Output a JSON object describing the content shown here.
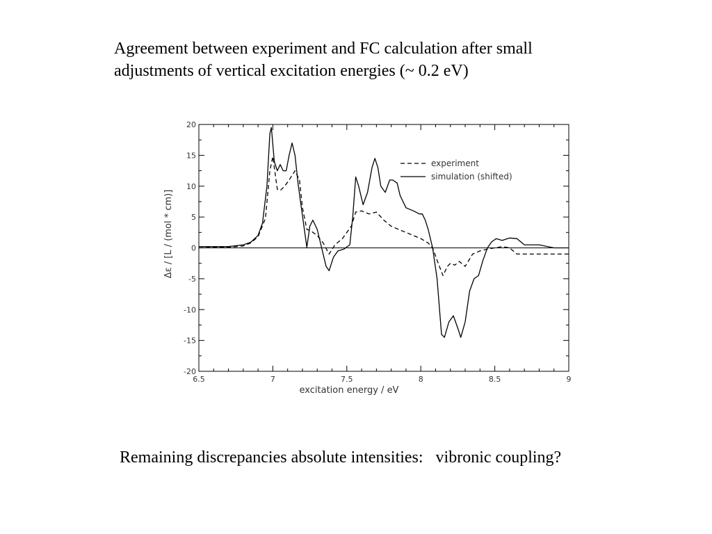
{
  "slide": {
    "title_lines": [
      "Agreement between experiment and FC calculation after small",
      "adjustments of vertical excitation energies (~ 0.2 eV)"
    ],
    "footer": "Remaining discrepancies absolute intensities:   vibronic coupling?"
  },
  "chart_data": {
    "type": "line",
    "title": "",
    "xlabel": "excitation energy / eV",
    "ylabel": "Δε / [L / (mol * cm)]",
    "xlim": [
      6.5,
      9
    ],
    "ylim": [
      -20,
      20
    ],
    "x_ticks": [
      6.5,
      7,
      7.5,
      8,
      8.5,
      9
    ],
    "x_tick_labels": [
      "6.5",
      "7",
      "7.5",
      "8",
      "8.5",
      "9"
    ],
    "y_ticks": [
      -20,
      -15,
      -10,
      -5,
      0,
      5,
      10,
      15,
      20
    ],
    "y_tick_labels": [
      "-20",
      "-15",
      "-10",
      "-5",
      "0",
      "5",
      "10",
      "15",
      "20"
    ],
    "grid": false,
    "zero_line": true,
    "legend_position": "top-right",
    "series": [
      {
        "name": "experiment",
        "style": "dashed",
        "color": "#000000",
        "x": [
          6.5,
          6.7,
          6.8,
          6.85,
          6.9,
          6.95,
          6.98,
          7.0,
          7.03,
          7.05,
          7.08,
          7.11,
          7.15,
          7.18,
          7.2,
          7.23,
          7.26,
          7.3,
          7.34,
          7.38,
          7.42,
          7.47,
          7.5,
          7.53,
          7.56,
          7.6,
          7.65,
          7.7,
          7.75,
          7.8,
          7.85,
          7.9,
          7.95,
          8.0,
          8.05,
          8.08,
          8.11,
          8.15,
          8.18,
          8.2,
          8.23,
          8.26,
          8.3,
          8.35,
          8.4,
          8.45,
          8.5,
          8.55,
          8.6,
          8.65,
          8.7,
          8.8,
          8.9,
          9.0
        ],
        "values": [
          0,
          0.1,
          0.3,
          0.8,
          1.8,
          4.8,
          12.5,
          14.8,
          9.5,
          9.3,
          10.0,
          11.0,
          12.5,
          11.0,
          6.5,
          3.0,
          2.7,
          2.0,
          0.8,
          -1.0,
          0.5,
          1.5,
          2.5,
          3.5,
          5.8,
          6.0,
          5.5,
          5.8,
          4.5,
          3.5,
          3.0,
          2.5,
          2.0,
          1.5,
          0.8,
          0,
          -2.0,
          -4.5,
          -3.0,
          -2.5,
          -2.8,
          -2.2,
          -3.0,
          -1.0,
          -0.5,
          -0.2,
          0,
          0.2,
          0,
          -1.0,
          -1.0,
          -1.0,
          -1.0,
          -1.0
        ]
      },
      {
        "name": "simulation (shifted)",
        "style": "solid",
        "color": "#000000",
        "x": [
          6.5,
          6.7,
          6.8,
          6.85,
          6.9,
          6.93,
          6.96,
          6.98,
          6.99,
          7.01,
          7.03,
          7.05,
          7.07,
          7.09,
          7.11,
          7.13,
          7.15,
          7.17,
          7.19,
          7.21,
          7.23,
          7.25,
          7.27,
          7.3,
          7.33,
          7.36,
          7.38,
          7.41,
          7.44,
          7.48,
          7.52,
          7.54,
          7.56,
          7.58,
          7.61,
          7.64,
          7.67,
          7.69,
          7.71,
          7.73,
          7.76,
          7.79,
          7.81,
          7.84,
          7.86,
          7.9,
          7.95,
          7.99,
          8.01,
          8.03,
          8.05,
          8.08,
          8.11,
          8.14,
          8.16,
          8.19,
          8.22,
          8.25,
          8.27,
          8.3,
          8.33,
          8.36,
          8.39,
          8.42,
          8.45,
          8.48,
          8.51,
          8.55,
          8.6,
          8.65,
          8.7,
          8.8,
          8.9,
          9.0
        ],
        "values": [
          0.2,
          0.2,
          0.5,
          0.9,
          2.0,
          4.0,
          10.0,
          18.5,
          19.5,
          14.0,
          12.5,
          13.5,
          12.5,
          12.5,
          15.0,
          17.0,
          15.0,
          10.5,
          7.0,
          3.5,
          0.1,
          3.5,
          4.5,
          3.0,
          0,
          -3.0,
          -3.7,
          -1.5,
          -0.5,
          -0.2,
          0.5,
          5.0,
          11.5,
          10.0,
          7.0,
          9.0,
          13.0,
          14.5,
          13.0,
          10.0,
          9.0,
          11.0,
          11.0,
          10.5,
          8.5,
          6.5,
          6.0,
          5.5,
          5.5,
          4.5,
          3.0,
          0,
          -5.0,
          -14.0,
          -14.5,
          -12.0,
          -11.0,
          -13.0,
          -14.5,
          -12.0,
          -7.0,
          -5.0,
          -4.5,
          -2.0,
          0,
          1.0,
          1.5,
          1.2,
          1.6,
          1.5,
          0.5,
          0.5,
          0,
          0
        ]
      }
    ]
  }
}
